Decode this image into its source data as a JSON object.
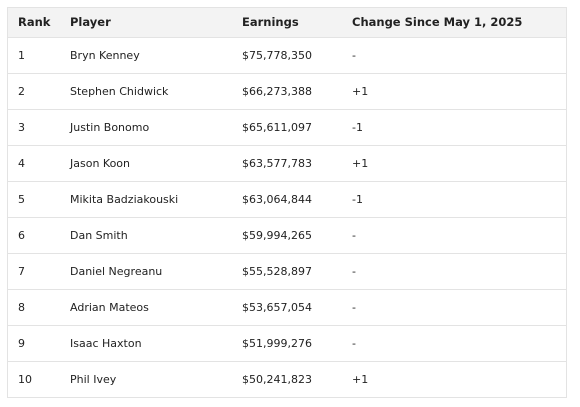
{
  "table": {
    "headers": {
      "rank": "Rank",
      "player": "Player",
      "earnings": "Earnings",
      "change": "Change Since May 1, 2025"
    },
    "rows": [
      {
        "rank": "1",
        "player": "Bryn Kenney",
        "earnings": "$75,778,350",
        "change": "-"
      },
      {
        "rank": "2",
        "player": "Stephen Chidwick",
        "earnings": "$66,273,388",
        "change": "+1"
      },
      {
        "rank": "3",
        "player": "Justin Bonomo",
        "earnings": "$65,611,097",
        "change": "-1"
      },
      {
        "rank": "4",
        "player": "Jason Koon",
        "earnings": "$63,577,783",
        "change": "+1"
      },
      {
        "rank": "5",
        "player": "Mikita Badziakouski",
        "earnings": "$63,064,844",
        "change": "-1"
      },
      {
        "rank": "6",
        "player": "Dan Smith",
        "earnings": "$59,994,265",
        "change": "-"
      },
      {
        "rank": "7",
        "player": "Daniel Negreanu",
        "earnings": "$55,528,897",
        "change": "-"
      },
      {
        "rank": "8",
        "player": "Adrian Mateos",
        "earnings": "$53,657,054",
        "change": "-"
      },
      {
        "rank": "9",
        "player": "Isaac Haxton",
        "earnings": "$51,999,276",
        "change": "-"
      },
      {
        "rank": "10",
        "player": "Phil Ivey",
        "earnings": "$50,241,823",
        "change": "+1"
      }
    ]
  }
}
